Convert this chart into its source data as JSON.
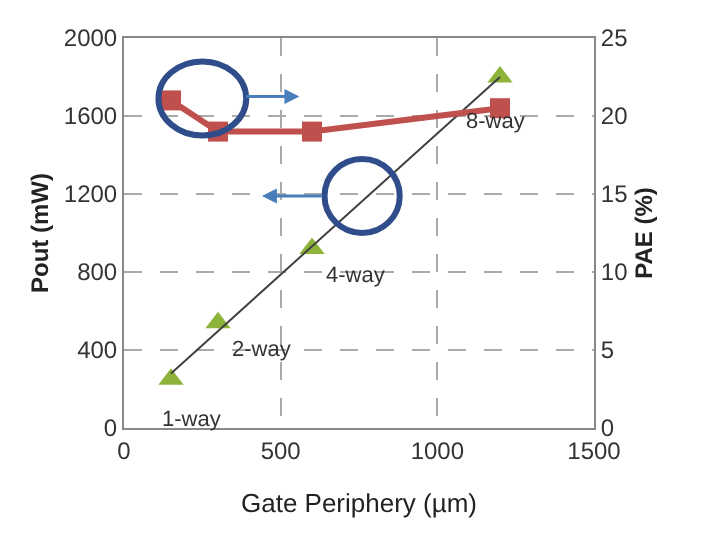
{
  "chart_data": {
    "type": "scatter",
    "xlabel": "Gate Periphery (µm)",
    "ylabel": "Pout (mW)",
    "y2label": "PAE (%)",
    "xlim": [
      0,
      1500
    ],
    "xticks": [
      0,
      500,
      1000,
      1500
    ],
    "ylim": [
      0,
      2000
    ],
    "yticks": [
      0,
      400,
      800,
      1200,
      1600,
      2000
    ],
    "y2lim": [
      0,
      25
    ],
    "y2ticks": [
      0,
      5,
      10,
      15,
      20,
      25
    ],
    "grid": true,
    "series": [
      {
        "marker": "triangle",
        "color": "#8db33a",
        "x": [
          150,
          300,
          600,
          1200
        ],
        "values": [
          250,
          540,
          920,
          1800
        ]
      },
      {
        "type": "line",
        "marker": "none",
        "color": "#404040",
        "x": [
          150,
          1200
        ],
        "values": [
          280,
          1800
        ]
      },
      {
        "type": "line",
        "marker": "square",
        "color": "#c0504d",
        "axis": "y2",
        "x": [
          150,
          300,
          600,
          1200
        ],
        "values": [
          21,
          19,
          19,
          20.5
        ]
      }
    ],
    "annotations": [
      {
        "text": "1-way",
        "x": 150,
        "y": 250
      },
      {
        "text": "2-way",
        "x": 300,
        "y": 540
      },
      {
        "text": "4-way",
        "x": 600,
        "y": 920
      },
      {
        "text": "8-way",
        "x": 1200,
        "y": 1800
      }
    ]
  }
}
